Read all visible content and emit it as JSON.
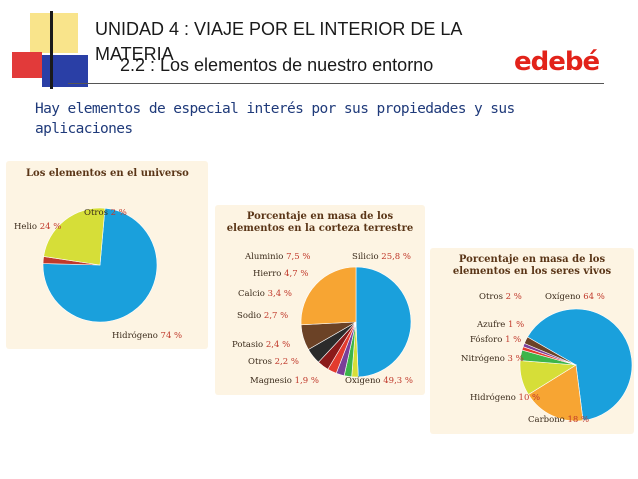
{
  "header": {
    "title_line1": "UNIDAD 4 : VIAJE POR EL INTERIOR DE LA",
    "title_line2": "MATERIA",
    "subtitle": "2.2 : Los elementos de nuestro entorno",
    "logo": "edebé"
  },
  "intro": "Hay elementos de especial interés por sus propiedades y sus aplicaciones",
  "colors": {
    "accent_red": "#e2231a",
    "text_blue": "#1f3a7a",
    "panel_bg": "#fdf4e3",
    "label_brown": "#5a3517"
  },
  "chart_data": [
    {
      "type": "pie",
      "title": "Los elementos en el universo",
      "unit": "%",
      "slices": [
        {
          "name": "Hidrógeno",
          "value": 74,
          "label": "74 %",
          "color": "#1aa0dc"
        },
        {
          "name": "Otros",
          "value": 2,
          "label": "2 %",
          "color": "#c0392b"
        },
        {
          "name": "Helio",
          "value": 24,
          "label": "24 %",
          "color": "#d6de38"
        }
      ]
    },
    {
      "type": "pie",
      "title": "Porcentaje en masa de los elementos en la corteza terrestre",
      "unit": "%",
      "slices": [
        {
          "name": "Oxígeno",
          "value": 49.3,
          "label": "49,3 %",
          "color": "#1aa0dc"
        },
        {
          "name": "Silicio",
          "value": 25.8,
          "label": "25,8 %",
          "color": "#f7a533"
        },
        {
          "name": "Aluminio",
          "value": 7.5,
          "label": "7,5 %",
          "color": "#6b4226"
        },
        {
          "name": "Hierro",
          "value": 4.7,
          "label": "4,7 %",
          "color": "#2b2b2b"
        },
        {
          "name": "Calcio",
          "value": 3.4,
          "label": "3,4 %",
          "color": "#8b1a1a"
        },
        {
          "name": "Sodio",
          "value": 2.7,
          "label": "2,7 %",
          "color": "#e33b2e"
        },
        {
          "name": "Potasio",
          "value": 2.4,
          "label": "2,4 %",
          "color": "#7a3f98"
        },
        {
          "name": "Otros",
          "value": 2.2,
          "label": "2,2 %",
          "color": "#3cb54a"
        },
        {
          "name": "Magnesio",
          "value": 1.9,
          "label": "1,9 %",
          "color": "#d6de38"
        }
      ]
    },
    {
      "type": "pie",
      "title": "Porcentaje en masa de los elementos en los seres vivos",
      "unit": "%",
      "slices": [
        {
          "name": "Oxígeno",
          "value": 64,
          "label": "64 %",
          "color": "#1aa0dc"
        },
        {
          "name": "Carbono",
          "value": 18,
          "label": "18 %",
          "color": "#f7a533"
        },
        {
          "name": "Hidrógeno",
          "value": 10,
          "label": "10 %",
          "color": "#d6de38"
        },
        {
          "name": "Nitrógeno",
          "value": 3,
          "label": "3 %",
          "color": "#3cb54a"
        },
        {
          "name": "Fósforo",
          "value": 1,
          "label": "1 %",
          "color": "#e33b2e"
        },
        {
          "name": "Azufre",
          "value": 1,
          "label": "1 %",
          "color": "#7a3f98"
        },
        {
          "name": "Otros",
          "value": 2,
          "label": "2 %",
          "color": "#6b4226"
        }
      ]
    }
  ]
}
